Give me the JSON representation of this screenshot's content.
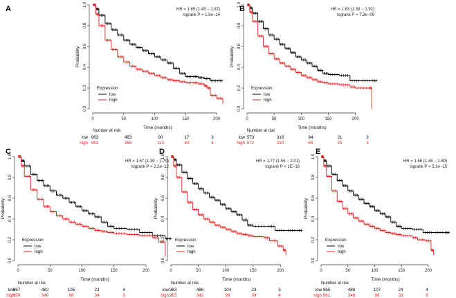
{
  "colors": {
    "low": "#000000",
    "high": "#e8211f",
    "axis": "#333333"
  },
  "chart_data": [
    {
      "panel": "A",
      "type": "line",
      "title": "",
      "xlabel": "Time (months)",
      "ylabel": "Probability",
      "xlim": [
        0,
        210
      ],
      "ylim": [
        0,
        1
      ],
      "x_ticks": [
        0,
        50,
        100,
        150,
        200
      ],
      "x_tick_labels": [
        "0",
        "50",
        "100",
        "150",
        "200"
      ],
      "y_ticks": [
        0,
        0.2,
        0.4,
        0.6,
        0.8,
        1.0
      ],
      "y_tick_labels": [
        "0.0",
        "0.2",
        "0.4",
        "0.6",
        "0.8",
        "1.0"
      ],
      "stats": {
        "hr_line": "HR = 1.65 (1.45 − 1.87)",
        "logrank_line": "logrank P = 1.9e−14"
      },
      "legend": {
        "title": "Expression",
        "entries": [
          "low",
          "high"
        ],
        "position": "bottom-left"
      },
      "series": [
        {
          "name": "low",
          "x": [
            0,
            5,
            10,
            20,
            30,
            40,
            50,
            60,
            70,
            80,
            90,
            100,
            110,
            120,
            130,
            140,
            150,
            160,
            170,
            180,
            190,
            200,
            210
          ],
          "y": [
            1.0,
            0.96,
            0.9,
            0.82,
            0.76,
            0.71,
            0.66,
            0.62,
            0.59,
            0.56,
            0.53,
            0.5,
            0.47,
            0.44,
            0.39,
            0.34,
            0.31,
            0.31,
            0.3,
            0.29,
            0.27,
            0.27,
            0.27
          ]
        },
        {
          "name": "high",
          "x": [
            0,
            5,
            10,
            20,
            30,
            40,
            50,
            60,
            70,
            80,
            90,
            100,
            110,
            120,
            130,
            140,
            150,
            160,
            170,
            180,
            185,
            190,
            200,
            210
          ],
          "y": [
            1.0,
            0.91,
            0.8,
            0.66,
            0.57,
            0.5,
            0.45,
            0.41,
            0.38,
            0.36,
            0.34,
            0.32,
            0.3,
            0.28,
            0.27,
            0.26,
            0.25,
            0.25,
            0.24,
            0.22,
            0.2,
            0.13,
            0.1,
            0.05
          ]
        }
      ],
      "risk_table": {
        "title": "Number at risk",
        "rows": [
          {
            "label": "low",
            "values": [
              "963",
              "463",
              "90",
              "17",
              "3"
            ]
          },
          {
            "label": "high",
            "values": [
              "963",
              "365",
              "113",
              "40",
              "4"
            ]
          }
        ]
      }
    },
    {
      "panel": "B",
      "type": "line",
      "title": "",
      "xlabel": "Time (months)",
      "ylabel": "Probability",
      "xlim": [
        0,
        240
      ],
      "ylim": [
        0,
        1
      ],
      "x_ticks": [
        0,
        50,
        100,
        150,
        200
      ],
      "x_tick_labels": [
        "0",
        "50",
        "100",
        "150",
        "200"
      ],
      "y_ticks": [
        0,
        0.2,
        0.4,
        0.6,
        0.8,
        1.0
      ],
      "y_tick_labels": [
        "0.0",
        "0.2",
        "0.4",
        "0.6",
        "0.8",
        "1.0"
      ],
      "stats": {
        "hr_line": "HR = 1.63 (1.38 − 1.92)",
        "logrank_line": "logrank P = 7.3e−09"
      },
      "legend": {
        "title": "Expression",
        "entries": [
          "low",
          "high"
        ],
        "position": "bottom-left"
      },
      "series": [
        {
          "name": "low",
          "x": [
            0,
            5,
            10,
            20,
            30,
            40,
            50,
            60,
            70,
            80,
            90,
            100,
            110,
            120,
            130,
            140,
            150,
            170,
            190,
            210,
            230,
            240
          ],
          "y": [
            1.0,
            0.97,
            0.92,
            0.84,
            0.77,
            0.71,
            0.67,
            0.62,
            0.58,
            0.54,
            0.5,
            0.47,
            0.44,
            0.41,
            0.37,
            0.34,
            0.33,
            0.32,
            0.27,
            0.27,
            0.27,
            0.27
          ]
        },
        {
          "name": "high",
          "x": [
            0,
            5,
            10,
            20,
            30,
            40,
            50,
            60,
            70,
            80,
            90,
            100,
            110,
            120,
            130,
            140,
            150,
            170,
            190,
            200,
            225,
            230
          ],
          "y": [
            1.0,
            0.93,
            0.84,
            0.7,
            0.6,
            0.53,
            0.48,
            0.44,
            0.41,
            0.38,
            0.35,
            0.32,
            0.3,
            0.28,
            0.26,
            0.25,
            0.24,
            0.23,
            0.21,
            0.2,
            0.2,
            0.0
          ]
        }
      ],
      "risk_table": {
        "title": "Number at risk",
        "rows": [
          {
            "label": "low",
            "values": [
              "573",
              "316",
              "84",
              "21",
              "3"
            ]
          },
          {
            "label": "high",
            "values": [
              "572",
              "230",
              "55",
              "25",
              "3"
            ]
          }
        ]
      }
    },
    {
      "panel": "C",
      "type": "line",
      "title": "",
      "xlabel": "Time (months)",
      "ylabel": "Probability",
      "xlim": [
        0,
        240
      ],
      "ylim": [
        0,
        1
      ],
      "x_ticks": [
        0,
        50,
        100,
        150,
        200
      ],
      "x_tick_labels": [
        "0",
        "50",
        "100",
        "150",
        "200"
      ],
      "y_ticks": [
        0,
        0.2,
        0.4,
        0.6,
        0.8,
        1.0
      ],
      "y_tick_labels": [
        "0.0",
        "0.2",
        "0.4",
        "0.6",
        "0.8",
        "1.0"
      ],
      "stats": {
        "hr_line": "HR = 1.57 (1.39 − 1.79)",
        "logrank_line": "logrank P = 2.2e−12"
      },
      "legend": {
        "title": "Expression",
        "entries": [
          "low",
          "high"
        ],
        "position": "bottom-left"
      },
      "series": [
        {
          "name": "low",
          "x": [
            0,
            5,
            10,
            20,
            30,
            40,
            50,
            60,
            70,
            80,
            90,
            100,
            110,
            120,
            130,
            140,
            150,
            170,
            190,
            210,
            230,
            240
          ],
          "y": [
            1.0,
            0.96,
            0.91,
            0.83,
            0.77,
            0.72,
            0.67,
            0.63,
            0.6,
            0.56,
            0.52,
            0.48,
            0.45,
            0.42,
            0.37,
            0.33,
            0.31,
            0.3,
            0.27,
            0.24,
            0.21,
            0.21
          ]
        },
        {
          "name": "high",
          "x": [
            0,
            5,
            10,
            20,
            30,
            40,
            50,
            60,
            70,
            80,
            90,
            100,
            110,
            120,
            130,
            140,
            150,
            170,
            190,
            210,
            220,
            230
          ],
          "y": [
            1.0,
            0.91,
            0.81,
            0.68,
            0.59,
            0.52,
            0.47,
            0.43,
            0.4,
            0.37,
            0.35,
            0.33,
            0.31,
            0.29,
            0.28,
            0.27,
            0.26,
            0.25,
            0.24,
            0.22,
            0.18,
            0.04
          ]
        }
      ],
      "risk_table": {
        "title": "Number at risk",
        "rows": [
          {
            "label": "low",
            "values": [
              "967",
              "482",
              "105",
              "23",
              "4"
            ]
          },
          {
            "label": "high",
            "values": [
              "959",
              "346",
              "98",
              "34",
              "3"
            ]
          }
        ]
      }
    },
    {
      "panel": "D",
      "type": "line",
      "title": "",
      "xlabel": "Time (months)",
      "ylabel": "Probability",
      "xlim": [
        0,
        240
      ],
      "ylim": [
        0,
        1
      ],
      "x_ticks": [
        0,
        50,
        100,
        150,
        200
      ],
      "x_tick_labels": [
        "0",
        "50",
        "100",
        "150",
        "200"
      ],
      "y_ticks": [
        0,
        0.2,
        0.4,
        0.6,
        0.8,
        1.0
      ],
      "y_tick_labels": [
        "0.0",
        "0.2",
        "0.4",
        "0.6",
        "0.8",
        "1.0"
      ],
      "stats": {
        "hr_line": "HR = 1.77 (1.55 − 2.01)",
        "logrank_line": "logrank P < 1E−16"
      },
      "legend": {
        "title": "Expression",
        "entries": [
          "low",
          "high"
        ],
        "position": "bottom-left"
      },
      "series": [
        {
          "name": "low",
          "x": [
            0,
            5,
            10,
            20,
            30,
            40,
            50,
            60,
            70,
            80,
            90,
            100,
            110,
            120,
            130,
            140,
            150,
            175,
            190,
            210,
            230,
            240
          ],
          "y": [
            1.0,
            0.97,
            0.92,
            0.85,
            0.79,
            0.74,
            0.69,
            0.65,
            0.61,
            0.58,
            0.54,
            0.5,
            0.47,
            0.44,
            0.39,
            0.34,
            0.33,
            0.33,
            0.29,
            0.29,
            0.29,
            0.29
          ]
        },
        {
          "name": "high",
          "x": [
            0,
            5,
            10,
            20,
            30,
            40,
            50,
            60,
            70,
            80,
            90,
            100,
            110,
            120,
            130,
            140,
            150,
            170,
            180,
            195,
            205,
            210
          ],
          "y": [
            1.0,
            0.91,
            0.8,
            0.66,
            0.56,
            0.49,
            0.44,
            0.4,
            0.37,
            0.34,
            0.32,
            0.3,
            0.28,
            0.26,
            0.25,
            0.24,
            0.23,
            0.22,
            0.19,
            0.14,
            0.1,
            0.05
          ]
        }
      ],
      "risk_table": {
        "title": "Number at risk",
        "rows": [
          {
            "label": "low",
            "values": [
              "963",
              "486",
              "104",
              "23",
              "3"
            ]
          },
          {
            "label": "high",
            "values": [
              "963",
              "342",
              "99",
              "34",
              "4"
            ]
          }
        ]
      }
    },
    {
      "panel": "E",
      "type": "line",
      "title": "",
      "xlabel": "Time (months)",
      "ylabel": "Probability",
      "xlim": [
        0,
        240
      ],
      "ylim": [
        0,
        1
      ],
      "x_ticks": [
        0,
        50,
        100,
        150,
        200
      ],
      "x_tick_labels": [
        "0",
        "50",
        "100",
        "150",
        "200"
      ],
      "y_ticks": [
        0,
        0.2,
        0.4,
        0.6,
        0.8,
        1.0
      ],
      "y_tick_labels": [
        "0.0",
        "0.2",
        "0.4",
        "0.6",
        "0.8",
        "1.0"
      ],
      "stats": {
        "hr_line": "HR = 1.66 (1.46 − 1.89)",
        "logrank_line": "logrank P = 5.1e−15"
      },
      "legend": {
        "title": "Expression",
        "entries": [
          "low",
          "high"
        ],
        "position": "bottom-left"
      },
      "series": [
        {
          "name": "low",
          "x": [
            0,
            5,
            10,
            20,
            30,
            40,
            50,
            60,
            70,
            80,
            90,
            100,
            110,
            120,
            130,
            140,
            150,
            170,
            190,
            210,
            230,
            240
          ],
          "y": [
            1.0,
            0.96,
            0.91,
            0.83,
            0.77,
            0.72,
            0.67,
            0.63,
            0.59,
            0.55,
            0.52,
            0.48,
            0.45,
            0.42,
            0.37,
            0.33,
            0.31,
            0.3,
            0.27,
            0.27,
            0.27,
            0.27
          ]
        },
        {
          "name": "high",
          "x": [
            0,
            5,
            10,
            20,
            30,
            40,
            50,
            60,
            70,
            80,
            90,
            100,
            110,
            120,
            130,
            140,
            150,
            170,
            180,
            195,
            205,
            210
          ],
          "y": [
            1.0,
            0.91,
            0.81,
            0.67,
            0.57,
            0.5,
            0.45,
            0.41,
            0.38,
            0.35,
            0.33,
            0.31,
            0.29,
            0.27,
            0.26,
            0.25,
            0.24,
            0.22,
            0.2,
            0.19,
            0.1,
            0.05
          ]
        }
      ],
      "risk_table": {
        "title": "Number at risk",
        "rows": [
          {
            "label": "low",
            "values": [
              "965",
              "488",
              "107",
              "24",
              "4"
            ]
          },
          {
            "label": "high",
            "values": [
              "961",
              "340",
              "98",
              "33",
              "3"
            ]
          }
        ]
      }
    }
  ]
}
